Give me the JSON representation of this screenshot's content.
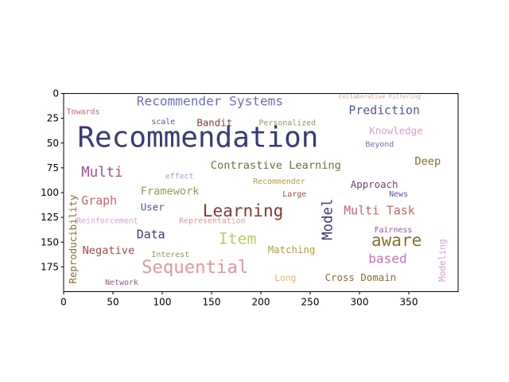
{
  "chart_data": {
    "type": "wordcloud",
    "title": "",
    "xlabel": "",
    "ylabel": "",
    "xlim": [
      0,
      400
    ],
    "ylim": [
      200,
      0
    ],
    "x_ticks": [
      0,
      50,
      100,
      150,
      200,
      250,
      300,
      350
    ],
    "y_ticks": [
      0,
      25,
      50,
      75,
      100,
      125,
      150,
      175
    ],
    "grid": false,
    "words": [
      {
        "text": "Recommendation",
        "x": 14,
        "y": 54,
        "size": 29,
        "color": "#393b79",
        "rotate": false
      },
      {
        "text": "Recommender Systems",
        "x": 74,
        "y": 12,
        "size": 13,
        "color": "#6b6ecf",
        "rotate": false
      },
      {
        "text": "Collaborative Filtering",
        "x": 279,
        "y": 5,
        "size": 6,
        "color": "#e7969c",
        "rotate": false
      },
      {
        "text": "Towards",
        "x": 3,
        "y": 21,
        "size": 8,
        "color": "#d6616b",
        "rotate": false
      },
      {
        "text": "Prediction",
        "x": 289,
        "y": 21,
        "size": 12,
        "color": "#5254a3",
        "rotate": false
      },
      {
        "text": "scale",
        "x": 89,
        "y": 31,
        "size": 8,
        "color": "#5254a3",
        "rotate": false
      },
      {
        "text": "Bandit",
        "x": 135,
        "y": 33,
        "size": 10,
        "color": "#843c39",
        "rotate": false
      },
      {
        "text": "Personalized",
        "x": 198,
        "y": 32,
        "size": 8,
        "color": "#8ca252",
        "rotate": false
      },
      {
        "text": "Knowledge",
        "x": 310,
        "y": 41,
        "size": 10,
        "color": "#de9ed6",
        "rotate": false
      },
      {
        "text": "Beyond",
        "x": 306,
        "y": 54,
        "size": 8,
        "color": "#6b6ecf",
        "rotate": false
      },
      {
        "text": "Deep",
        "x": 356,
        "y": 72,
        "size": 11,
        "color": "#8c6d31",
        "rotate": false
      },
      {
        "text": "Contrastive Learning",
        "x": 149,
        "y": 76,
        "size": 11,
        "color": "#637939",
        "rotate": false
      },
      {
        "text": "Multi",
        "x": 18,
        "y": 84,
        "size": 14,
        "color": "#a55194",
        "rotate": false
      },
      {
        "text": "effect",
        "x": 103,
        "y": 86,
        "size": 8,
        "color": "#9c9ede",
        "rotate": false
      },
      {
        "text": "Recommender",
        "x": 192,
        "y": 91,
        "size": 8,
        "color": "#bd9e39",
        "rotate": false
      },
      {
        "text": "Approach",
        "x": 291,
        "y": 95,
        "size": 10,
        "color": "#7b4173",
        "rotate": false
      },
      {
        "text": "Framework",
        "x": 78,
        "y": 102,
        "size": 11,
        "color": "#8ca252",
        "rotate": false
      },
      {
        "text": "Large",
        "x": 222,
        "y": 104,
        "size": 8,
        "color": "#ad494a",
        "rotate": false
      },
      {
        "text": "News",
        "x": 330,
        "y": 104,
        "size": 8,
        "color": "#5254a3",
        "rotate": false
      },
      {
        "text": "Graph",
        "x": 18,
        "y": 112,
        "size": 12,
        "color": "#d6616b",
        "rotate": false
      },
      {
        "text": "User",
        "x": 78,
        "y": 118,
        "size": 10,
        "color": "#5254a3",
        "rotate": false
      },
      {
        "text": "Learning",
        "x": 141,
        "y": 124,
        "size": 17,
        "color": "#843c39",
        "rotate": false
      },
      {
        "text": "Multi Task",
        "x": 284,
        "y": 122,
        "size": 12,
        "color": "#d6616b",
        "rotate": false
      },
      {
        "text": "Reinforcement",
        "x": 13,
        "y": 131,
        "size": 8,
        "color": "#de9ed6",
        "rotate": false
      },
      {
        "text": "Representation",
        "x": 117,
        "y": 131,
        "size": 8,
        "color": "#e7969c",
        "rotate": false
      },
      {
        "text": "Model",
        "x": 272,
        "y": 148,
        "size": 14,
        "color": "#393b79",
        "rotate": true
      },
      {
        "text": "Reproducibility",
        "x": 13,
        "y": 192,
        "size": 10,
        "color": "#8c6d31",
        "rotate": true
      },
      {
        "text": "Fairness",
        "x": 315,
        "y": 140,
        "size": 8,
        "color": "#a55194",
        "rotate": false
      },
      {
        "text": "Modeling",
        "x": 387,
        "y": 190,
        "size": 9,
        "color": "#de9ed6",
        "rotate": true
      },
      {
        "text": "Data",
        "x": 74,
        "y": 146,
        "size": 12,
        "color": "#393b79",
        "rotate": false
      },
      {
        "text": "Item",
        "x": 157,
        "y": 152,
        "size": 16,
        "color": "#b5cf6b",
        "rotate": false
      },
      {
        "text": "aware",
        "x": 312,
        "y": 154,
        "size": 17,
        "color": "#8c6d31",
        "rotate": false
      },
      {
        "text": "Negative",
        "x": 19,
        "y": 162,
        "size": 11,
        "color": "#ad494a",
        "rotate": false
      },
      {
        "text": "Interest",
        "x": 89,
        "y": 165,
        "size": 8,
        "color": "#8ca252",
        "rotate": false
      },
      {
        "text": "Matching",
        "x": 207,
        "y": 161,
        "size": 10,
        "color": "#bd9e39",
        "rotate": false
      },
      {
        "text": "based",
        "x": 309,
        "y": 171,
        "size": 13,
        "color": "#ce6dbd",
        "rotate": false
      },
      {
        "text": "Sequential",
        "x": 79,
        "y": 181,
        "size": 18,
        "color": "#e7969c",
        "rotate": false
      },
      {
        "text": "Long",
        "x": 214,
        "y": 189,
        "size": 9,
        "color": "#e7ba52",
        "rotate": false
      },
      {
        "text": "Cross Domain",
        "x": 265,
        "y": 189,
        "size": 10,
        "color": "#8c6d31",
        "rotate": false
      },
      {
        "text": "Network",
        "x": 42,
        "y": 193,
        "size": 8,
        "color": "#a55194",
        "rotate": false
      }
    ]
  }
}
